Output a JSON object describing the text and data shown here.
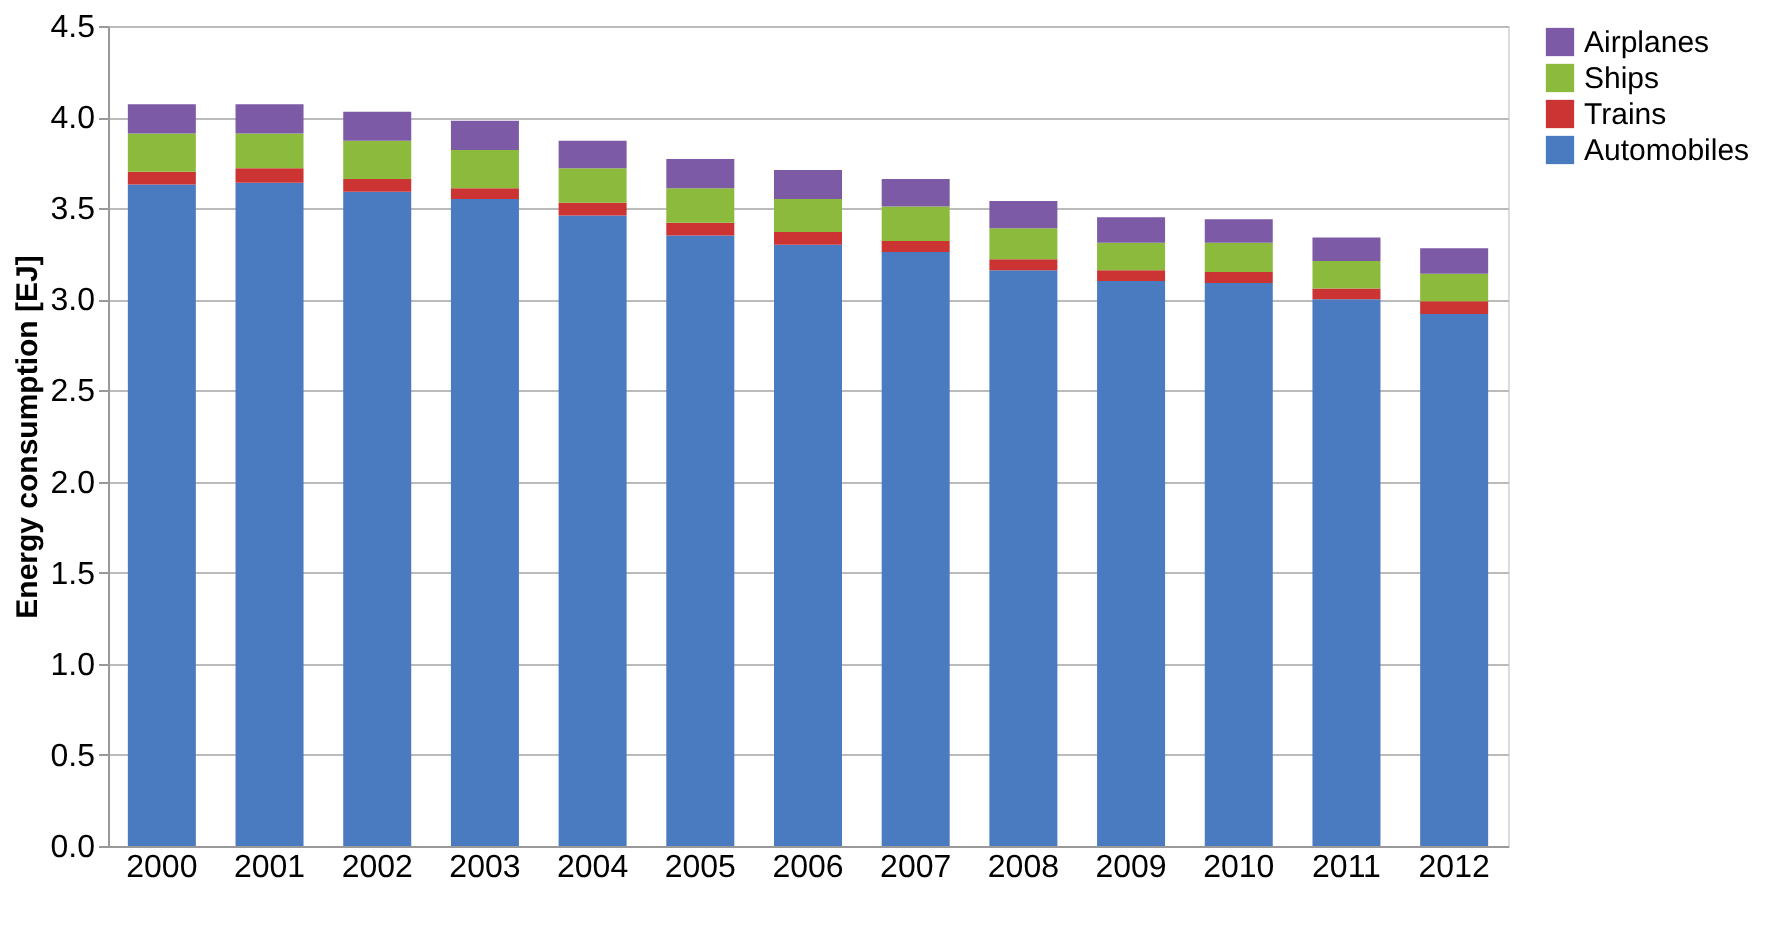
{
  "chart_data": {
    "type": "bar",
    "stacked": true,
    "ylabel": "Energy consumption [EJ]",
    "categories": [
      "2000",
      "2001",
      "2002",
      "2003",
      "2004",
      "2005",
      "2006",
      "2007",
      "2008",
      "2009",
      "2010",
      "2011",
      "2012"
    ],
    "series": [
      {
        "name": "Automobiles",
        "color": "#4a7bc0",
        "values": [
          3.63,
          3.64,
          3.59,
          3.55,
          3.46,
          3.35,
          3.3,
          3.26,
          3.16,
          3.1,
          3.09,
          3.0,
          2.92
        ]
      },
      {
        "name": "Trains",
        "color": "#cc3333",
        "values": [
          0.07,
          0.08,
          0.07,
          0.06,
          0.07,
          0.07,
          0.07,
          0.06,
          0.06,
          0.06,
          0.06,
          0.06,
          0.07
        ]
      },
      {
        "name": "Ships",
        "color": "#8cba3c",
        "values": [
          0.21,
          0.19,
          0.21,
          0.21,
          0.19,
          0.19,
          0.18,
          0.19,
          0.17,
          0.15,
          0.16,
          0.15,
          0.15
        ]
      },
      {
        "name": "Airplanes",
        "color": "#7d5aa6",
        "values": [
          0.16,
          0.16,
          0.16,
          0.16,
          0.15,
          0.16,
          0.16,
          0.15,
          0.15,
          0.14,
          0.13,
          0.13,
          0.14
        ]
      }
    ],
    "ylim": [
      0.0,
      4.5
    ],
    "yticks": [
      {
        "value": 0,
        "label": "0.0"
      },
      0.5,
      {
        "value": 1,
        "label": "1.0"
      },
      1.5,
      {
        "value": 2,
        "label": "2.0"
      },
      2.5,
      {
        "value": 3,
        "label": "3.0"
      },
      3.5,
      {
        "value": 4,
        "label": "4.0"
      },
      4.5
    ],
    "grid": "y",
    "legend": "right"
  }
}
